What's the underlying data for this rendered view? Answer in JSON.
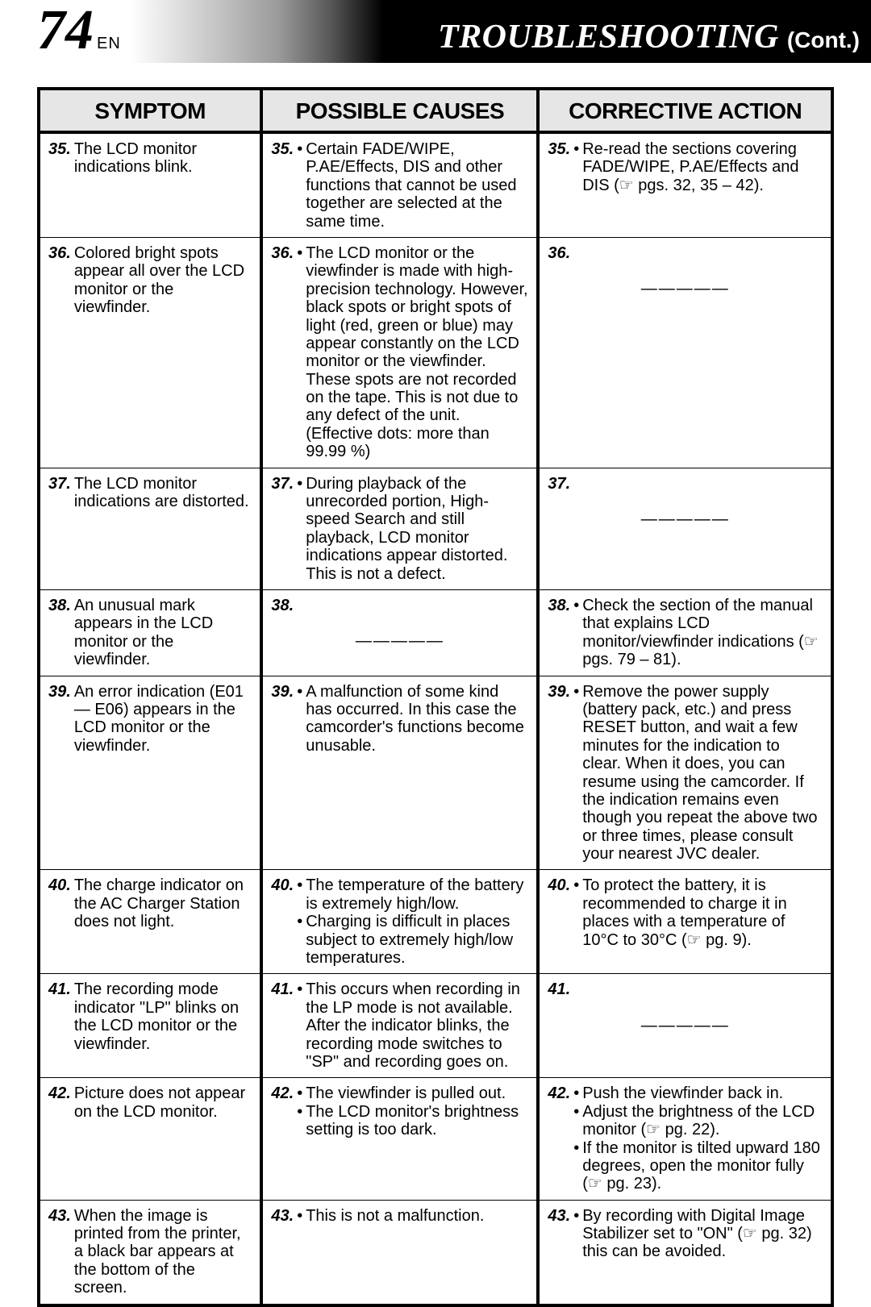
{
  "header": {
    "page_number": "74",
    "lang": "EN",
    "title": "TROUBLESHOOTING",
    "cont": "(Cont.)"
  },
  "columns": {
    "symptom": "SYMPTOM",
    "causes": "POSSIBLE CAUSES",
    "action": "CORRECTIVE ACTION"
  },
  "rows": [
    {
      "n": "35.",
      "symptom": "The LCD monitor indications blink.",
      "causes": [
        "Certain FADE/WIPE, P.AE/Effects, DIS and other functions that cannot be used together are selected at the same time."
      ],
      "action_n": "35.",
      "actions": [
        "Re-read the sections covering FADE/WIPE, P.AE/Effects and DIS (☞ pgs. 32, 35 – 42)."
      ]
    },
    {
      "n": "36.",
      "symptom": "Colored bright spots appear all over the LCD monitor or the viewfinder.",
      "causes": [
        "The LCD monitor or the viewfinder is made with high-precision technology. However, black spots or bright spots of light (red, green or blue) may appear constantly on the LCD monitor or the viewfinder. These spots are not recorded on the tape. This is not due to any defect of the unit. (Effective dots: more than 99.99 %)"
      ],
      "action_n": "36.",
      "actions": null,
      "dash": true
    },
    {
      "n": "37.",
      "symptom": "The LCD monitor indications are distorted.",
      "causes": [
        "During playback of the unrecorded portion, High-speed Search and still playback, LCD monitor indications appear distorted. This is not a defect."
      ],
      "action_n": "37.",
      "actions": null,
      "dash": true
    },
    {
      "n": "38.",
      "symptom": "An unusual mark appears in the LCD monitor or the viewfinder.",
      "causes_n": "38.",
      "causes": null,
      "causes_dash": true,
      "action_n": "38.",
      "actions": [
        "Check the section of the manual that explains LCD monitor/viewfinder indica­tions (☞ pgs. 79 – 81)."
      ]
    },
    {
      "n": "39.",
      "symptom": "An error indication (E01 — E06) appears in the LCD monitor or the viewfinder.",
      "causes": [
        "A malfunction of some kind has occurred. In this case the camcorder's functions become unusable."
      ],
      "action_n": "39.",
      "actions": [
        "Remove the power supply (battery pack, etc.) and press RESET button, and wait a few minutes for the indication to clear. When it does, you can resume using the camcorder. If the indication remains even though you repeat the above two or three times, please consult your nearest JVC dealer."
      ]
    },
    {
      "n": "40.",
      "symptom": "The charge indicator on the AC Charger Station does not light.",
      "causes": [
        "The temperature of the battery is extremely high/low.",
        "Charging is difficult in places subject to extremely high/low temperatures."
      ],
      "action_n": "40.",
      "actions": [
        "To protect the battery, it is recommended to charge it in places with a temperature of 10°C to 30°C (☞ pg. 9)."
      ]
    },
    {
      "n": "41.",
      "symptom": "The recording mode indicator \"LP\" blinks on the LCD monitor or the viewfinder.",
      "causes": [
        "This occurs when recording in the LP mode is not available. After the indicator blinks, the recording mode switches to \"SP\" and recording goes on."
      ],
      "action_n": "41.",
      "actions": null,
      "dash": true
    },
    {
      "n": "42.",
      "symptom": "Picture does not appear on the LCD monitor.",
      "causes": [
        "The viewfinder is pulled out.",
        "The LCD monitor's bright­ness setting is too dark."
      ],
      "action_n": "42.",
      "actions": [
        "Push the viewfinder back in.",
        "Adjust the brightness of the LCD monitor (☞ pg. 22).",
        "If the monitor is tilted upward 180 degrees, open the monitor fully (☞ pg. 23)."
      ]
    },
    {
      "n": "43.",
      "symptom": "When the image is printed from the printer, a black bar appears at the bottom of the screen.",
      "causes": [
        "This is not a malfunction."
      ],
      "action_n": "43.",
      "actions": [
        "By recording with Digital Image Stabilizer set to \"ON\" (☞ pg. 32) this can be avoided."
      ]
    }
  ]
}
